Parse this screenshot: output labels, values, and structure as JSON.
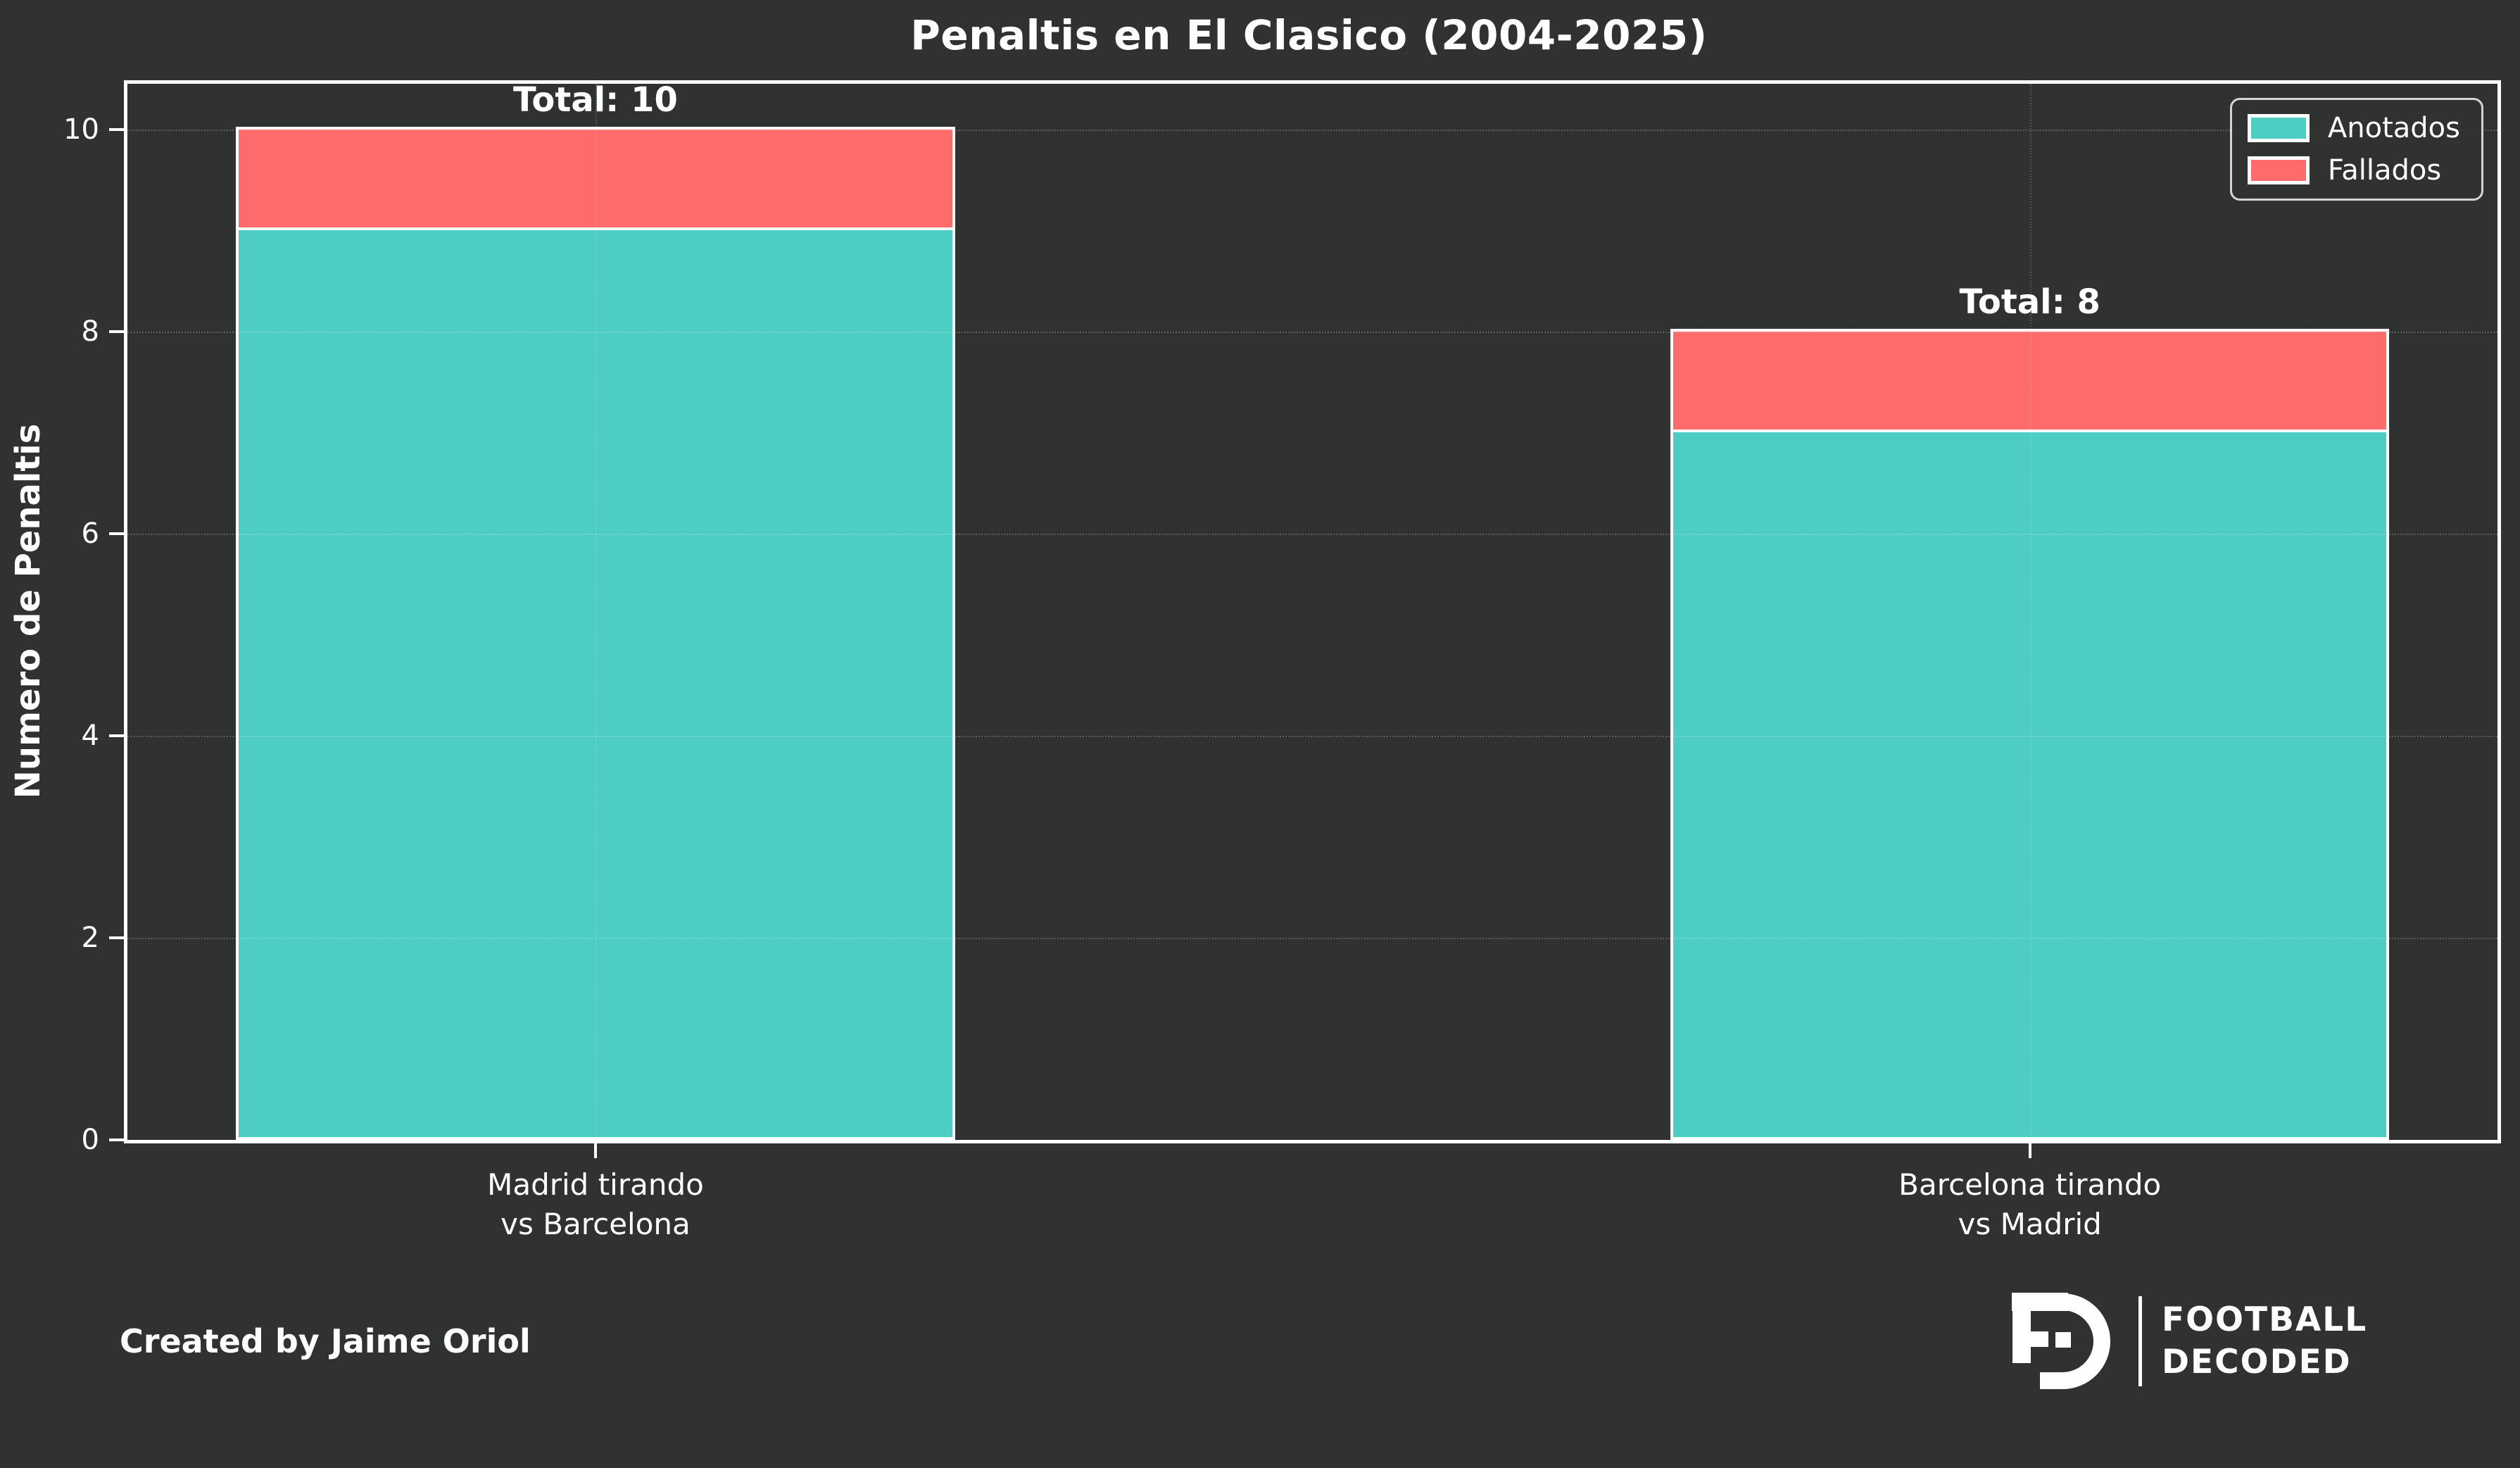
{
  "credit": "Created by Jaime Oriol",
  "logo": {
    "monogram": "FD",
    "line1": "FOOTBALL",
    "line2": "DECODED"
  },
  "colors": {
    "background": "#303232",
    "text": "#ffffff",
    "anotados": "#4ECDC4",
    "fallados": "#FF6B6B",
    "spine": "#ffffff",
    "grid": "rgba(255,255,255,0.22)",
    "legend_border": "#d4d4d4"
  },
  "chart_data": {
    "type": "bar",
    "stacked": true,
    "title": "Penaltis en El Clasico (2004-2025)",
    "xlabel": "",
    "ylabel": "Numero de Penaltis",
    "categories": [
      "Madrid tirando\nvs Barcelona",
      "Barcelona tirando\nvs Madrid"
    ],
    "series": [
      {
        "name": "Anotados",
        "color": "#4ECDC4",
        "values": [
          9,
          7
        ]
      },
      {
        "name": "Fallados",
        "color": "#FF6B6B",
        "values": [
          1,
          1
        ]
      }
    ],
    "totals": [
      10,
      8
    ],
    "total_label_prefix": "Total: ",
    "yticks": [
      0,
      2,
      4,
      6,
      8,
      10
    ],
    "ylim": [
      0,
      10.45
    ],
    "grid": true,
    "grid_above_bars": true,
    "legend_position": "upper right",
    "bar_width_fraction": 0.3033,
    "bar_center_fractions": [
      0.1975,
      0.8027
    ]
  }
}
